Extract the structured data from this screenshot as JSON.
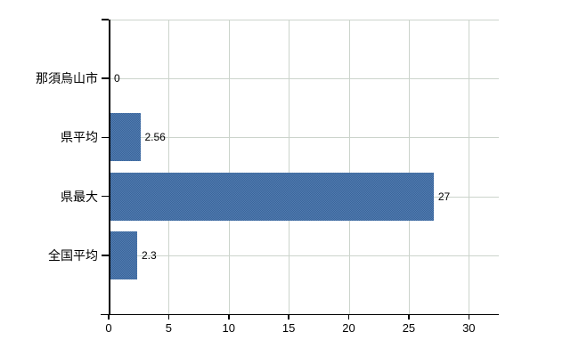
{
  "chart_data": {
    "type": "bar",
    "orientation": "horizontal",
    "title": "",
    "categories": [
      "那須烏山市",
      "県平均",
      "県最大",
      "全国平均"
    ],
    "values": [
      0,
      2.56,
      27,
      2.3
    ],
    "data_labels": [
      "0",
      "2.56",
      "27",
      "2.3"
    ],
    "x_ticks": [
      0,
      5,
      10,
      15,
      20,
      25,
      30
    ],
    "xlim": [
      0,
      32.5
    ],
    "grid": true,
    "legend_position": "none",
    "colors": {
      "bar": "#3e6da7",
      "grid": "#ccd4cc",
      "axis": "#000000",
      "text": "#000000",
      "background": "#ffffff"
    }
  }
}
